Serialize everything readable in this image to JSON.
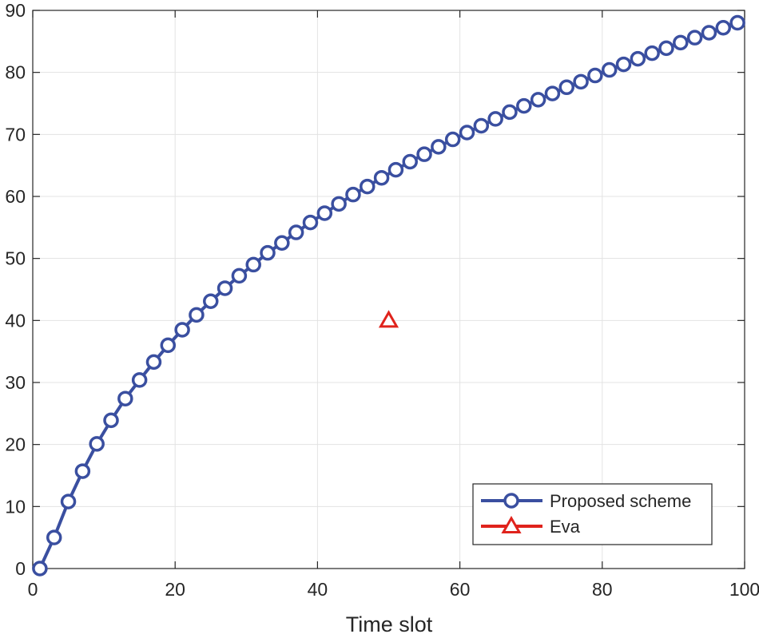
{
  "chart_data": {
    "type": "line",
    "title": "",
    "xlabel": "Time slot",
    "ylabel": "",
    "xlim": [
      0,
      100
    ],
    "ylim": [
      0,
      90
    ],
    "xticks": [
      0,
      20,
      40,
      60,
      80,
      100
    ],
    "yticks": [
      0,
      10,
      20,
      30,
      40,
      50,
      60,
      70,
      80,
      90
    ],
    "grid": true,
    "legend_position": "bottom-right",
    "series": [
      {
        "name": "Proposed scheme",
        "color": "#3a4fa0",
        "marker": "circle",
        "x": [
          1,
          3,
          5,
          7,
          9,
          11,
          13,
          15,
          17,
          19,
          21,
          23,
          25,
          27,
          29,
          31,
          33,
          35,
          37,
          39,
          41,
          43,
          45,
          47,
          49,
          51,
          53,
          55,
          57,
          59,
          61,
          63,
          65,
          67,
          69,
          71,
          73,
          75,
          77,
          79,
          81,
          83,
          85,
          87,
          89,
          91,
          93,
          95,
          97,
          99
        ],
        "y": [
          0,
          5.0,
          10.8,
          15.7,
          20.1,
          23.9,
          27.4,
          30.4,
          33.3,
          36.0,
          38.5,
          40.9,
          43.1,
          45.2,
          47.2,
          49.0,
          50.9,
          52.5,
          54.2,
          55.8,
          57.3,
          58.8,
          60.3,
          61.6,
          63.0,
          64.3,
          65.6,
          66.8,
          68.0,
          69.2,
          70.3,
          71.4,
          72.5,
          73.6,
          74.6,
          75.6,
          76.6,
          77.6,
          78.5,
          79.5,
          80.4,
          81.3,
          82.2,
          83.1,
          83.9,
          84.8,
          85.6,
          86.4,
          87.2,
          88.0
        ]
      },
      {
        "name": "Eva",
        "color": "#e0231c",
        "marker": "triangle",
        "x": [
          50
        ],
        "y": [
          40
        ]
      }
    ]
  }
}
